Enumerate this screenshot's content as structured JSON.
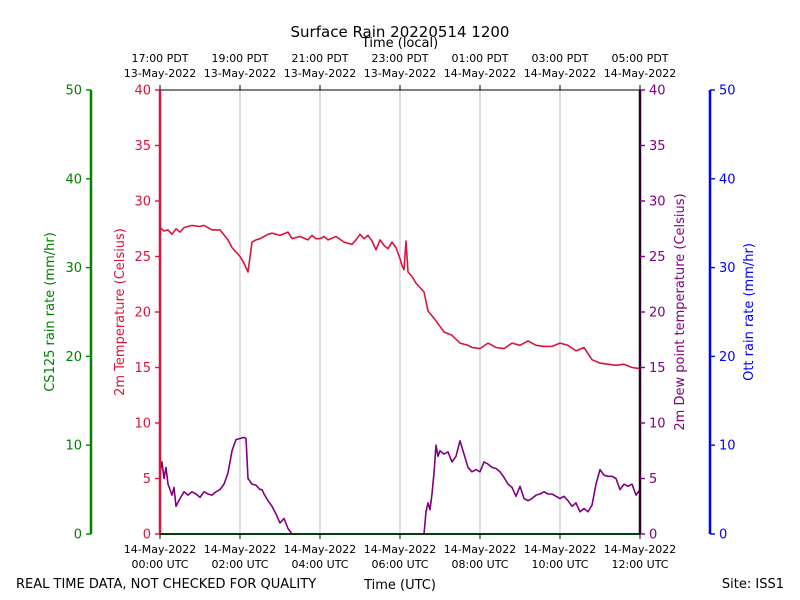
{
  "chart_data": {
    "type": "line",
    "title": "Surface Rain 20220514 1200",
    "top_axis_label": "Time (local)",
    "xlabel": "Time (UTC)",
    "footer_left": "REAL TIME DATA, NOT CHECKED FOR QUALITY",
    "footer_right": "Site: ISS1",
    "x_range_hours": [
      0,
      12
    ],
    "bottom_ticks": [
      {
        "hour": 0,
        "line1": "14-May-2022",
        "line2": "00:00 UTC"
      },
      {
        "hour": 2,
        "line1": "14-May-2022",
        "line2": "02:00 UTC"
      },
      {
        "hour": 4,
        "line1": "14-May-2022",
        "line2": "04:00 UTC"
      },
      {
        "hour": 6,
        "line1": "14-May-2022",
        "line2": "06:00 UTC"
      },
      {
        "hour": 8,
        "line1": "14-May-2022",
        "line2": "08:00 UTC"
      },
      {
        "hour": 10,
        "line1": "14-May-2022",
        "line2": "10:00 UTC"
      },
      {
        "hour": 12,
        "line1": "14-May-2022",
        "line2": "12:00 UTC"
      }
    ],
    "top_ticks": [
      {
        "hour": 0,
        "line1": "17:00 PDT",
        "line2": "13-May-2022"
      },
      {
        "hour": 2,
        "line1": "19:00 PDT",
        "line2": "13-May-2022"
      },
      {
        "hour": 4,
        "line1": "21:00 PDT",
        "line2": "13-May-2022"
      },
      {
        "hour": 6,
        "line1": "23:00 PDT",
        "line2": "13-May-2022"
      },
      {
        "hour": 8,
        "line1": "01:00 PDT",
        "line2": "14-May-2022"
      },
      {
        "hour": 10,
        "line1": "03:00 PDT",
        "line2": "14-May-2022"
      },
      {
        "hour": 12,
        "line1": "05:00 PDT",
        "line2": "14-May-2022"
      }
    ],
    "axes": {
      "cs125": {
        "label": "CS125 rain rate (mm/hr)",
        "ylim": [
          0,
          50
        ],
        "ticks": [
          0,
          10,
          20,
          30,
          40,
          50
        ],
        "color": "#008000"
      },
      "temperature": {
        "label": "2m Temperature (Celsius)",
        "ylim": [
          0,
          40
        ],
        "ticks": [
          0,
          5,
          10,
          15,
          20,
          25,
          30,
          35,
          40
        ],
        "color": "#dc143c"
      },
      "dewpoint": {
        "label": "2m Dew point temperature (Celsius)",
        "ylim": [
          0,
          40
        ],
        "ticks": [
          0,
          5,
          10,
          15,
          20,
          25,
          30,
          35,
          40
        ],
        "color": "#800080"
      },
      "ott": {
        "label": "Ott rain rate (mm/hr)",
        "ylim": [
          0,
          50
        ],
        "ticks": [
          0,
          10,
          20,
          30,
          40,
          50
        ],
        "color": "#0000ff"
      }
    },
    "series": [
      {
        "name": "2m Temperature",
        "axis": "temperature",
        "color": "#dc143c",
        "x": [
          0,
          0.1,
          0.2,
          0.3,
          0.4,
          0.5,
          0.6,
          0.8,
          1.0,
          1.1,
          1.3,
          1.5,
          1.7,
          1.8,
          2.0,
          2.1,
          2.2,
          2.3,
          2.4,
          2.5,
          2.6,
          2.7,
          2.8,
          3.0,
          3.2,
          3.3,
          3.5,
          3.7,
          3.8,
          3.9,
          4.0,
          4.1,
          4.2,
          4.4,
          4.6,
          4.8,
          4.9,
          5.0,
          5.1,
          5.2,
          5.3,
          5.4,
          5.5,
          5.6,
          5.7,
          5.8,
          5.9,
          6.0,
          6.05,
          6.1,
          6.15,
          6.2,
          6.3,
          6.4,
          6.6,
          6.7,
          6.9,
          7.1,
          7.3,
          7.5,
          7.7,
          7.8,
          8.0,
          8.2,
          8.4,
          8.6,
          8.8,
          9.0,
          9.2,
          9.4,
          9.6,
          9.8,
          10.0,
          10.2,
          10.4,
          10.6,
          10.8,
          11.0,
          11.2,
          11.4,
          11.6,
          11.8,
          12.0
        ],
        "values": [
          27.6,
          27.3,
          27.4,
          27.0,
          27.5,
          27.2,
          27.6,
          27.8,
          27.7,
          27.8,
          27.4,
          27.4,
          26.5,
          25.8,
          25.0,
          24.4,
          23.6,
          26.3,
          26.5,
          26.6,
          26.8,
          27.0,
          27.1,
          26.9,
          27.2,
          26.6,
          26.8,
          26.5,
          26.9,
          26.6,
          26.6,
          26.8,
          26.5,
          26.8,
          26.3,
          26.1,
          26.5,
          27.0,
          26.6,
          26.9,
          26.4,
          25.6,
          26.5,
          26.0,
          25.7,
          26.3,
          25.8,
          24.8,
          24.2,
          23.8,
          26.4,
          23.6,
          23.2,
          22.6,
          21.8,
          20.1,
          19.2,
          18.2,
          17.9,
          17.2,
          17.0,
          16.8,
          16.7,
          17.2,
          16.8,
          16.7,
          17.2,
          17.0,
          17.4,
          17.0,
          16.9,
          16.9,
          17.2,
          17.0,
          16.5,
          16.8,
          15.7,
          15.4,
          15.3,
          15.2,
          15.3,
          15.0,
          14.9
        ]
      },
      {
        "name": "2m Dew point temperature",
        "axis": "dewpoint",
        "color": "#800080",
        "segments": [
          {
            "x": [
              0,
              0.05,
              0.1,
              0.15,
              0.2,
              0.25,
              0.3,
              0.35,
              0.4,
              0.5,
              0.6,
              0.7,
              0.8,
              0.9,
              1.0,
              1.1,
              1.2,
              1.3,
              1.4,
              1.5,
              1.6,
              1.7,
              1.8,
              1.9,
              2.0,
              2.1,
              2.15,
              2.2,
              2.3,
              2.4,
              2.5,
              2.55,
              2.6,
              2.7,
              2.8,
              2.9,
              3.0,
              3.1,
              3.2,
              3.3,
              3.4,
              3.5,
              3.6,
              3.65,
              3.7
            ],
            "values": [
              5.5,
              6.5,
              5.0,
              6.0,
              4.5,
              4.0,
              3.5,
              4.2,
              2.5,
              3.2,
              3.8,
              3.5,
              3.8,
              3.6,
              3.3,
              3.8,
              3.6,
              3.5,
              3.8,
              4.0,
              4.5,
              5.5,
              7.5,
              8.5,
              8.6,
              8.7,
              8.6,
              5.0,
              4.5,
              4.4,
              4.0,
              4.0,
              3.6,
              3.0,
              2.5,
              1.8,
              1.0,
              1.4,
              0.5,
              0.0,
              0.0,
              0.0,
              0.0,
              0.0,
              0.0
            ]
          },
          {
            "x": [
              6.6,
              6.65,
              6.7,
              6.75,
              6.8,
              6.85,
              6.9,
              6.95,
              7.0,
              7.1,
              7.2,
              7.3,
              7.4,
              7.5,
              7.6,
              7.7,
              7.8,
              7.9,
              8.0,
              8.1,
              8.2,
              8.3,
              8.4,
              8.5,
              8.6,
              8.7,
              8.8,
              8.9,
              9.0,
              9.1,
              9.2,
              9.3,
              9.4,
              9.5,
              9.6,
              9.7,
              9.8,
              9.9,
              10.0,
              10.1,
              10.2,
              10.3,
              10.4,
              10.5,
              10.6,
              10.7,
              10.8,
              10.9,
              11.0,
              11.1,
              11.2,
              11.3,
              11.4,
              11.5,
              11.6,
              11.7,
              11.8,
              11.9,
              12.0
            ],
            "values": [
              0.0,
              2.0,
              2.8,
              2.2,
              3.6,
              5.5,
              8.0,
              7.0,
              7.5,
              7.2,
              7.4,
              6.5,
              7.0,
              8.4,
              7.2,
              6.0,
              5.6,
              5.8,
              5.6,
              6.5,
              6.3,
              6.0,
              5.9,
              5.6,
              5.1,
              4.5,
              4.2,
              3.4,
              4.3,
              3.2,
              3.0,
              3.2,
              3.5,
              3.6,
              3.8,
              3.6,
              3.6,
              3.4,
              3.2,
              3.4,
              3.0,
              2.5,
              2.8,
              2.0,
              2.3,
              2.0,
              2.6,
              4.5,
              5.8,
              5.3,
              5.2,
              5.2,
              5.0,
              4.0,
              4.5,
              4.3,
              4.5,
              3.5,
              4.0
            ]
          }
        ]
      },
      {
        "name": "CS125 rain rate",
        "axis": "cs125",
        "color": "#008000",
        "x": [
          0,
          12
        ],
        "values": [
          0,
          0
        ]
      }
    ]
  }
}
